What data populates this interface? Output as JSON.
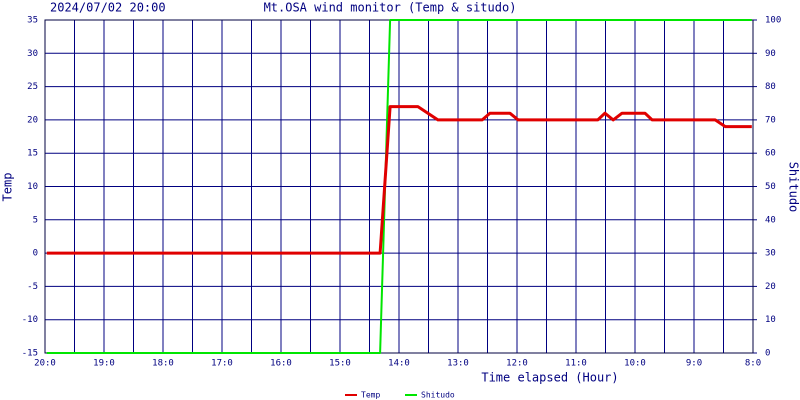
{
  "chart_data": {
    "type": "line",
    "date": "2024/07/02 20:00",
    "title": "Mt.OSA wind monitor (Temp & situdo)",
    "x_label": "Time elapsed (Hour)",
    "y_label": "Temp",
    "y2_label": "Shitudo",
    "x": [
      19.97,
      14.32,
      14.15,
      13.68,
      13.34,
      12.59,
      12.46,
      12.12,
      11.98,
      10.63,
      10.51,
      10.37,
      10.22,
      9.83,
      9.71,
      8.64,
      8.47,
      8.02
    ],
    "series": [
      {
        "name": "Temp",
        "color": "#e00000",
        "values": [
          0,
          0,
          22,
          22,
          20,
          20,
          21,
          21,
          20,
          20,
          21,
          20,
          21,
          21,
          20,
          20,
          19,
          19
        ]
      },
      {
        "name": "Shitudo",
        "color": "#00e600",
        "axis": "y2",
        "values": [
          0,
          0,
          100,
          100,
          100,
          100,
          100,
          100,
          100,
          100,
          100,
          100,
          100,
          100,
          100,
          100,
          100,
          100
        ]
      }
    ],
    "xlim": [
      20,
      8
    ],
    "xticks": [
      {
        "value": 20,
        "label": "20:0"
      },
      {
        "value": 19,
        "label": "19:0"
      },
      {
        "value": 18,
        "label": "18:0"
      },
      {
        "value": 17,
        "label": "17:0"
      },
      {
        "value": 16,
        "label": "16:0"
      },
      {
        "value": 15,
        "label": "15:0"
      },
      {
        "value": 14,
        "label": "14:0"
      },
      {
        "value": 13,
        "label": "13:0"
      },
      {
        "value": 12,
        "label": "12:0"
      },
      {
        "value": 11,
        "label": "11:0"
      },
      {
        "value": 10,
        "label": "10:0"
      },
      {
        "value": 9,
        "label": "9:0"
      },
      {
        "value": 8,
        "label": "8:0"
      }
    ],
    "ylim": [
      -15,
      35
    ],
    "yticks": [
      -15,
      -10,
      -5,
      0,
      5,
      10,
      15,
      20,
      25,
      30,
      35
    ],
    "y2lim": [
      0,
      100
    ],
    "y2ticks": [
      0,
      10,
      20,
      30,
      40,
      50,
      60,
      70,
      80,
      90,
      100
    ],
    "grid": true
  }
}
